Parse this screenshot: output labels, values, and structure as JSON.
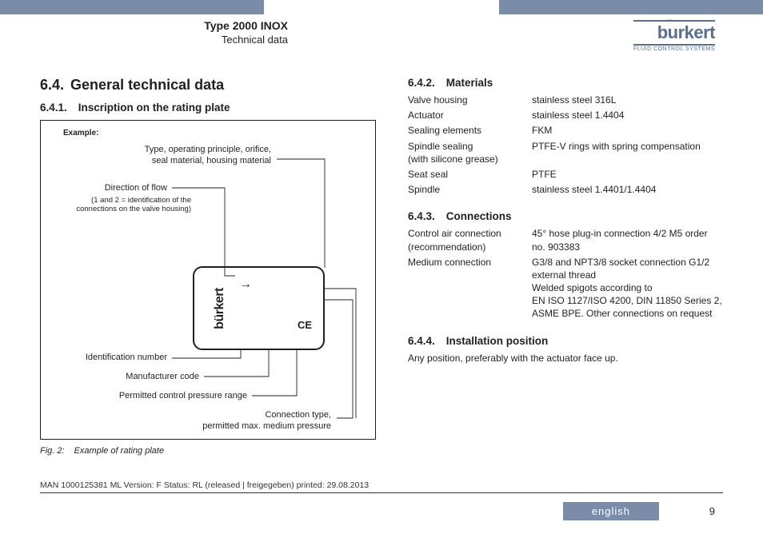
{
  "header": {
    "title_line1": "Type 2000 INOX",
    "title_line2": "Technical data",
    "brand_name": "burkert",
    "brand_tagline": "FLUID CONTROL SYSTEMS"
  },
  "left": {
    "h64_num": "6.4.",
    "h64_title": "General technical data",
    "h641_num": "6.4.1.",
    "h641_title": "Inscription on the rating plate",
    "example_label": "Example:",
    "labels": {
      "type_op": "Type, operating principle, orifice,\nseal material, housing material",
      "direction": "Direction of flow",
      "direction_sub": "(1 and 2 = identification of the\nconnections on the valve housing)",
      "ident": "Identification number",
      "mfg": "Manufacturer code",
      "pressure": "Permitted control pressure range",
      "conn": "Connection type,\npermitted max. medium pressure"
    },
    "plate_brand": "bürkert",
    "plate_arrow": "→",
    "plate_ce": "CE",
    "figcap_num": "Fig. 2:",
    "figcap_txt": "Example of rating plate"
  },
  "right": {
    "s642_num": "6.4.2.",
    "s642_title": "Materials",
    "materials": [
      {
        "k": "Valve housing",
        "v": "stainless steel 316L"
      },
      {
        "k": "Actuator",
        "v": "stainless steel 1.4404"
      },
      {
        "k": "Sealing elements",
        "v": "FKM"
      },
      {
        "k": "Spindle sealing\n(with silicone grease)",
        "v": "PTFE-V rings with spring compensation"
      },
      {
        "k": "Seat seal",
        "v": "PTFE"
      },
      {
        "k": "Spindle",
        "v": "stainless steel 1.4401/1.4404"
      }
    ],
    "s643_num": "6.4.3.",
    "s643_title": "Connections",
    "connections": [
      {
        "k": "Control air connection (recommendation)",
        "v": "45° hose plug-in connection 4/2 M5 order no. 903383"
      },
      {
        "k": "Medium connection",
        "v": "G3/8 and NPT3/8 socket connection G1/2 external thread\nWelded spigots according to\nEN ISO 1127/ISO 4200, DIN 11850 Series 2, ASME BPE. Other connections on request"
      }
    ],
    "s644_num": "6.4.4.",
    "s644_title": "Installation position",
    "s644_body": "Any position, preferably with the actuator face up."
  },
  "footer": {
    "man": "MAN  1000125381  ML  Version: F Status: RL (released | freigegeben)  printed: 29.08.2013",
    "lang": "english",
    "page": "9"
  },
  "colors": {
    "bar": "#7b8ca8",
    "logo": "#5a6e8f",
    "text": "#231f20"
  }
}
